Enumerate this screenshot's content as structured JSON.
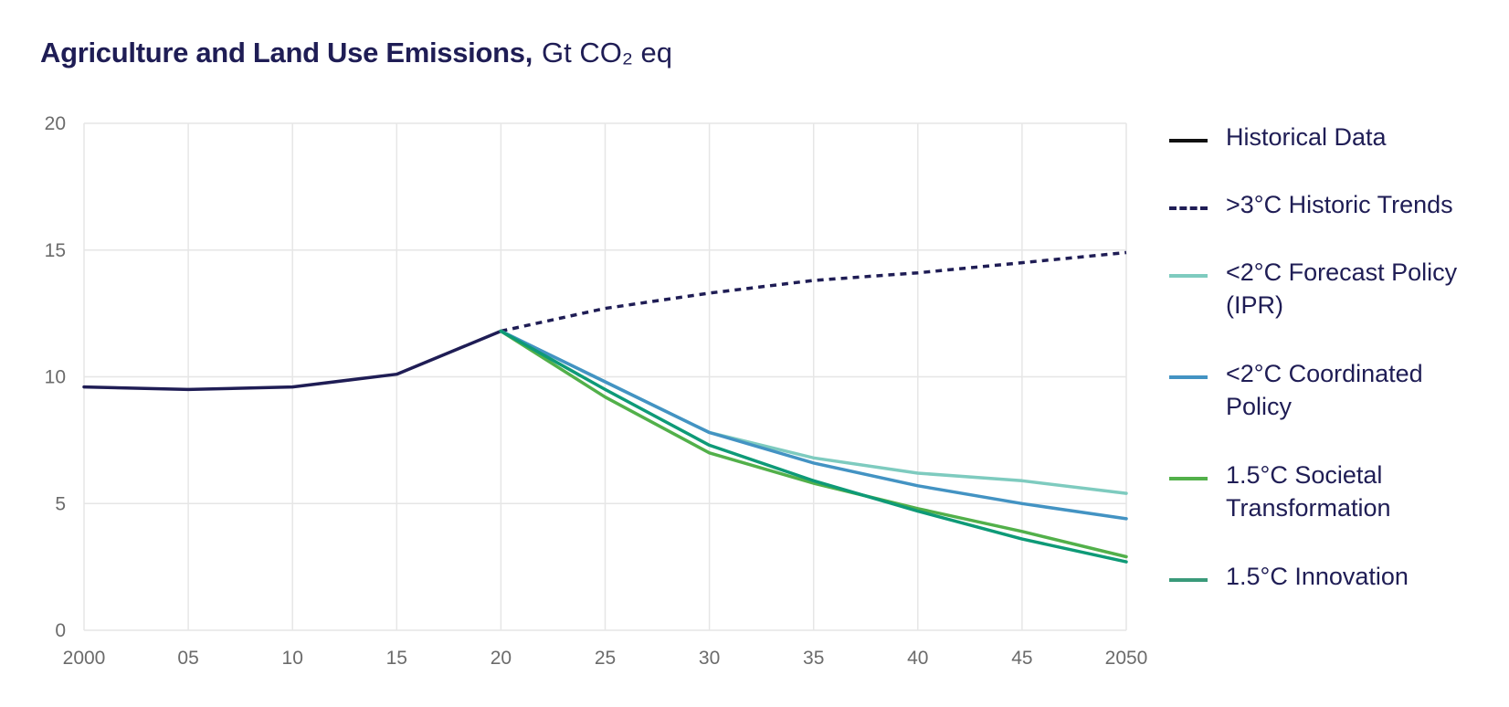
{
  "title": {
    "main": "Agriculture and Land Use Emissions,",
    "unit": "Gt CO₂ eq"
  },
  "chart_data": {
    "type": "line",
    "xlim": [
      2000,
      2050
    ],
    "ylim": [
      0,
      20
    ],
    "x_ticks": [
      {
        "value": 2000,
        "label": "2000"
      },
      {
        "value": 2005,
        "label": "05"
      },
      {
        "value": 2010,
        "label": "10"
      },
      {
        "value": 2015,
        "label": "15"
      },
      {
        "value": 2020,
        "label": "20"
      },
      {
        "value": 2025,
        "label": "25"
      },
      {
        "value": 2030,
        "label": "30"
      },
      {
        "value": 2035,
        "label": "35"
      },
      {
        "value": 2040,
        "label": "40"
      },
      {
        "value": 2045,
        "label": "45"
      },
      {
        "value": 2050,
        "label": "2050"
      }
    ],
    "y_ticks": [
      {
        "value": 0,
        "label": "0"
      },
      {
        "value": 5,
        "label": "5"
      },
      {
        "value": 10,
        "label": "10"
      },
      {
        "value": 15,
        "label": "15"
      },
      {
        "value": 20,
        "label": "20"
      }
    ],
    "grid": true,
    "legend_position": "right",
    "series": [
      {
        "name": "Historical Data",
        "color": "#1f1d55",
        "dashed": false,
        "x": [
          2000,
          2005,
          2010,
          2015,
          2020
        ],
        "y": [
          9.6,
          9.5,
          9.6,
          10.1,
          11.8
        ]
      },
      {
        "name": ">3°C Historic Trends",
        "color": "#1f1d55",
        "dashed": true,
        "x": [
          2020,
          2025,
          2030,
          2035,
          2040,
          2045,
          2050
        ],
        "y": [
          11.8,
          12.7,
          13.3,
          13.8,
          14.1,
          14.5,
          14.9
        ]
      },
      {
        "name": "<2°C Forecast Policy (IPR)",
        "color": "#7ecbbf",
        "dashed": false,
        "x": [
          2020,
          2025,
          2030,
          2035,
          2040,
          2045,
          2050
        ],
        "y": [
          11.8,
          9.8,
          7.8,
          6.8,
          6.2,
          5.9,
          5.4
        ]
      },
      {
        "name": "<2°C Coordinated Policy",
        "color": "#4393c3",
        "dashed": false,
        "x": [
          2020,
          2025,
          2030,
          2035,
          2040,
          2045,
          2050
        ],
        "y": [
          11.8,
          9.8,
          7.8,
          6.6,
          5.7,
          5.0,
          4.4
        ]
      },
      {
        "name": "1.5°C Societal Transformation",
        "color": "#52b04a",
        "dashed": false,
        "x": [
          2020,
          2025,
          2030,
          2035,
          2040,
          2045,
          2050
        ],
        "y": [
          11.8,
          9.2,
          7.0,
          5.8,
          4.8,
          3.9,
          2.9
        ]
      },
      {
        "name": "1.5°C Innovation",
        "color": "#0e9a77",
        "dashed": false,
        "x": [
          2020,
          2025,
          2030,
          2035,
          2040,
          2045,
          2050
        ],
        "y": [
          11.8,
          9.5,
          7.3,
          5.9,
          4.7,
          3.6,
          2.7
        ]
      }
    ]
  },
  "legend": [
    {
      "lines": [
        "Historical Data"
      ],
      "color": "#111111",
      "dashed": false
    },
    {
      "lines": [
        ">3°C Historic Trends"
      ],
      "color": "#1f1d55",
      "dashed": true
    },
    {
      "lines": [
        "<2°C Forecast Policy",
        "(IPR)"
      ],
      "color": "#7ecbbf",
      "dashed": false
    },
    {
      "lines": [
        "<2°C Coordinated",
        "Policy"
      ],
      "color": "#4393c3",
      "dashed": false
    },
    {
      "lines": [
        "1.5°C Societal",
        "Transformation"
      ],
      "color": "#52b04a",
      "dashed": false
    },
    {
      "lines": [
        "1.5°C Innovation"
      ],
      "color": "#3a9a7a",
      "dashed": false
    }
  ]
}
